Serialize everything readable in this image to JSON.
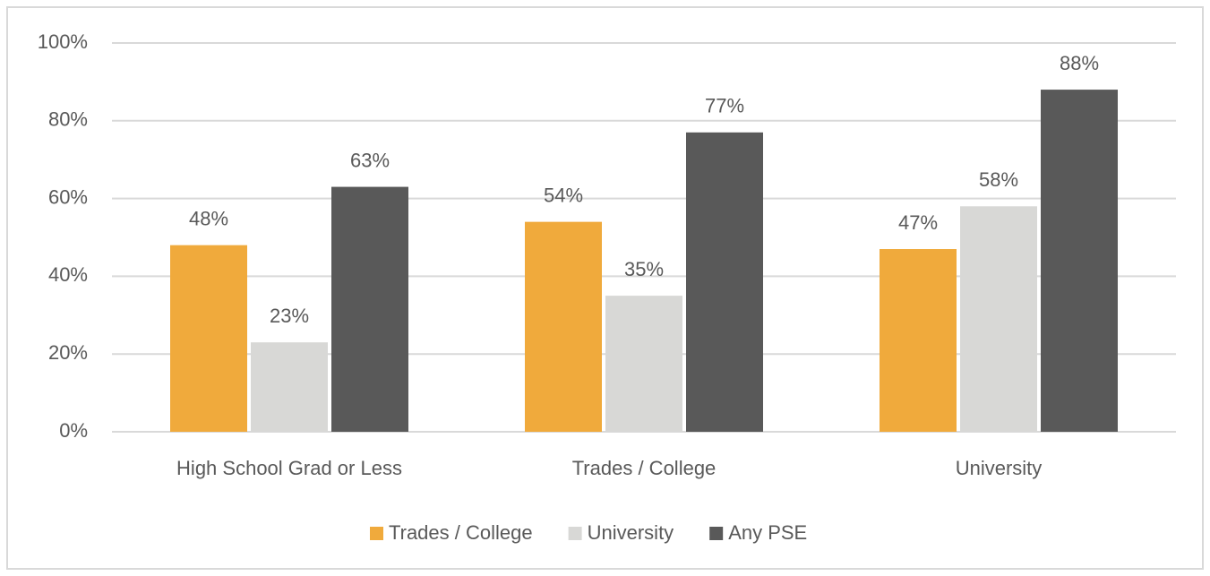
{
  "chart_data": {
    "type": "bar",
    "categories": [
      "High School Grad or Less",
      "Trades / College",
      "University"
    ],
    "series": [
      {
        "name": "Trades / College",
        "color": "#f0aa3c",
        "values": [
          48,
          54,
          47
        ],
        "value_labels": [
          "48%",
          "54%",
          "47%"
        ]
      },
      {
        "name": "University",
        "color": "#d8d8d6",
        "values": [
          23,
          35,
          58
        ],
        "value_labels": [
          "23%",
          "35%",
          "58%"
        ]
      },
      {
        "name": "Any PSE",
        "color": "#595959",
        "values": [
          63,
          77,
          88
        ],
        "value_labels": [
          "63%",
          "77%",
          "88%"
        ]
      }
    ],
    "ylim": [
      0,
      100
    ],
    "yticks": [
      {
        "value": 0,
        "label": "0%"
      },
      {
        "value": 20,
        "label": "20%"
      },
      {
        "value": 40,
        "label": "40%"
      },
      {
        "value": 60,
        "label": "60%"
      },
      {
        "value": 80,
        "label": "80%"
      },
      {
        "value": 100,
        "label": "100%"
      }
    ],
    "grid": true,
    "legend": "bottom"
  }
}
